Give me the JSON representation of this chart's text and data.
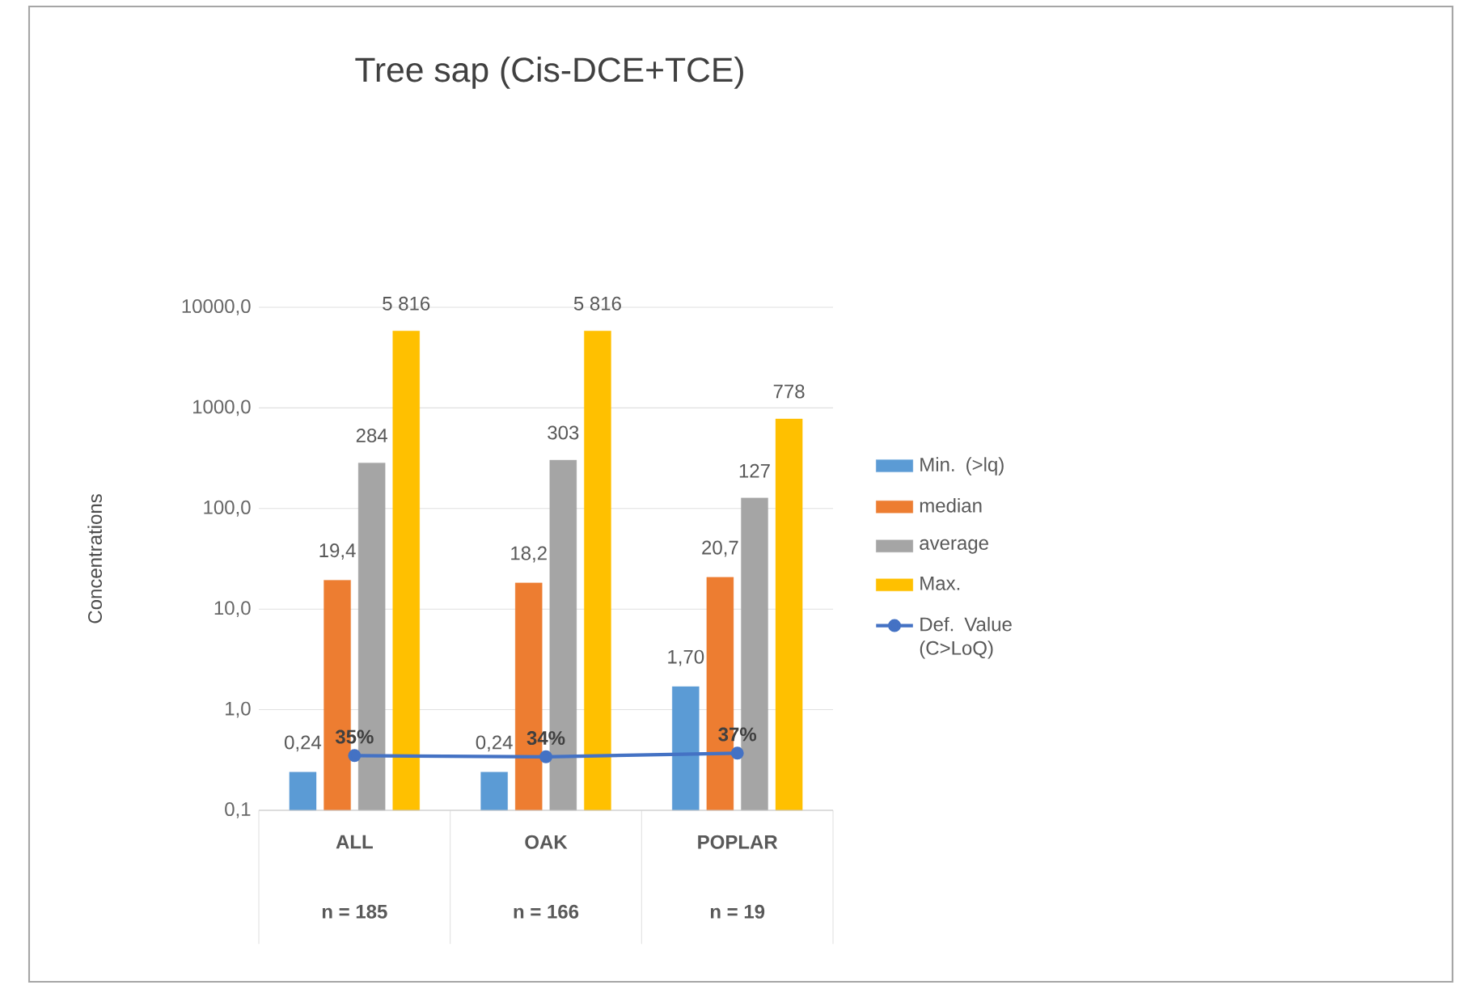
{
  "chart_data": {
    "type": "bar",
    "title": "Tree sap (Cis-DCE+TCE)",
    "ylabel": "Concentrations",
    "categories": [
      "ALL",
      "OAK",
      "POPLAR"
    ],
    "annotations": [
      "n = 185",
      "n = 166",
      "n = 19"
    ],
    "log": "y",
    "ylim": [
      0.1,
      10000
    ],
    "yticks": [
      {
        "value": 0.1,
        "label": "0,1"
      },
      {
        "value": 1,
        "label": "1,0"
      },
      {
        "value": 10,
        "label": "10,0"
      },
      {
        "value": 100,
        "label": "100,0"
      },
      {
        "value": 1000,
        "label": "1000,0"
      },
      {
        "value": 10000,
        "label": "10000,0"
      }
    ],
    "grid": "y",
    "legend": "right",
    "series": [
      {
        "name": "Min. (>lq)",
        "color": "#5b9bd5",
        "values": [
          0.24,
          0.24,
          1.7
        ],
        "value_labels": [
          "0,24",
          "0,24",
          "1,70"
        ]
      },
      {
        "name": "median",
        "color": "#ed7d31",
        "values": [
          19.4,
          18.2,
          20.7
        ],
        "value_labels": [
          "19,4",
          "18,2",
          "20,7"
        ]
      },
      {
        "name": "average",
        "color": "#a5a5a5",
        "values": [
          284,
          303,
          127
        ],
        "value_labels": [
          "284",
          "303",
          "127"
        ]
      },
      {
        "name": "Max.",
        "color": "#ffc000",
        "values": [
          5816,
          5816,
          778
        ],
        "value_labels": [
          "5 816",
          "5 816",
          "778"
        ]
      },
      {
        "name": "Def. Value (C>LoQ)",
        "type": "line",
        "marker": "circle",
        "color": "#4472c4",
        "values": [
          0.35,
          0.34,
          0.37
        ],
        "value_labels": [
          "35%",
          "34%",
          "37%"
        ]
      }
    ]
  }
}
